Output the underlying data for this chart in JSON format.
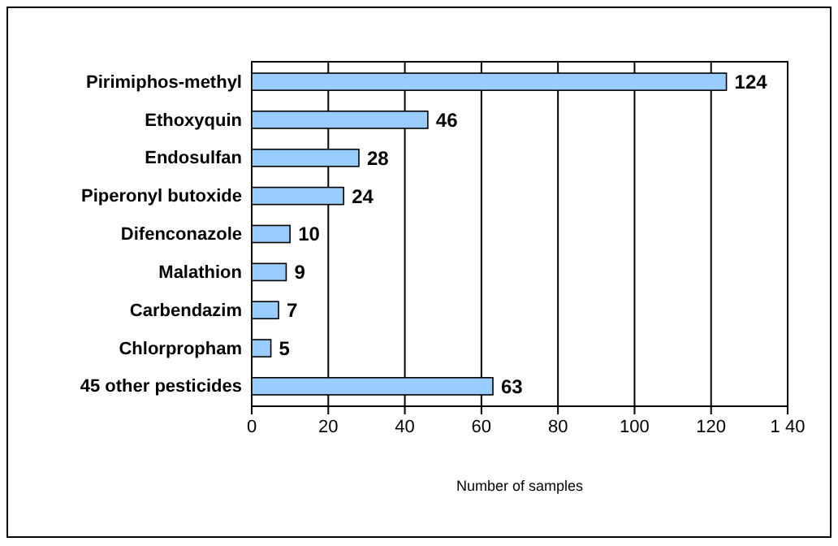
{
  "chart_data": {
    "type": "bar",
    "orientation": "horizontal",
    "xlabel": "Number of samples",
    "categories": [
      "Pirimiphos-methyl",
      "Ethoxyquin",
      "Endosulfan",
      "Piperonyl butoxide",
      "Difenconazole",
      "Malathion",
      "Carbendazim",
      "Chlorpropham",
      "45 other pesticides"
    ],
    "values": [
      124,
      46,
      28,
      24,
      10,
      9,
      7,
      5,
      63
    ],
    "color": "#99ccff",
    "xlim": [
      0,
      140
    ],
    "xticks": [
      0,
      20,
      40,
      60,
      80,
      100,
      120,
      {
        "value": 140,
        "label": "1 40"
      }
    ],
    "grid": "x",
    "data_labels": true
  }
}
